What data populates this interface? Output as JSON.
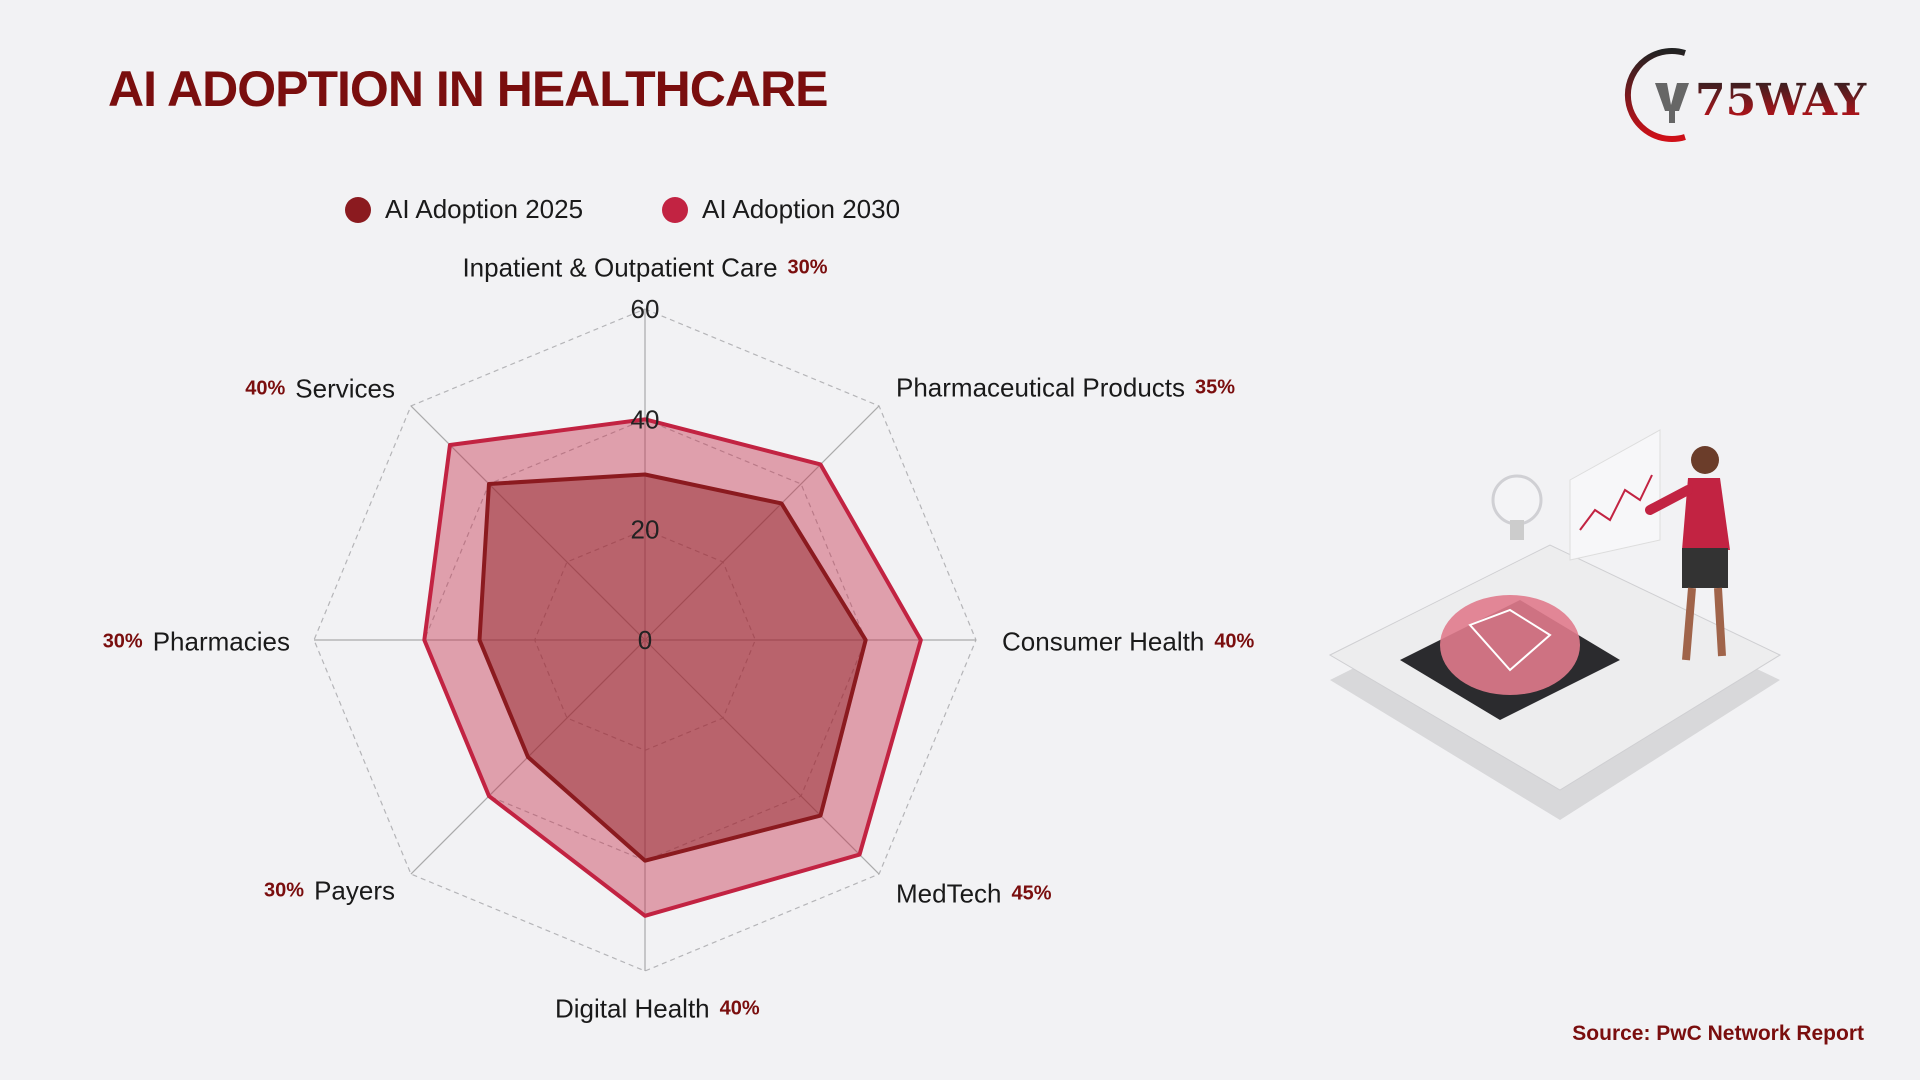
{
  "title": "AI ADOPTION IN HEALTHCARE",
  "logo": {
    "text": "75WAY"
  },
  "watermark": "75Way",
  "source": "Source: PwC Network Report",
  "chart_data": {
    "type": "radar",
    "title": "AI ADOPTION IN HEALTHCARE",
    "categories": [
      "Inpatient & Outpatient Care",
      "Pharmaceutical Products",
      "Consumer Health",
      "MedTech",
      "Digital Health",
      "Payers",
      "Pharmacies",
      "Services"
    ],
    "category_percent_labels": [
      "30%",
      "35%",
      "40%",
      "45%",
      "40%",
      "30%",
      "30%",
      "40%"
    ],
    "series": [
      {
        "name": "AI Adoption 2025",
        "color": "#8b1a1f",
        "values": [
          30,
          35,
          40,
          45,
          40,
          30,
          30,
          40
        ]
      },
      {
        "name": "AI Adoption 2030",
        "color": "#c22342",
        "values": [
          40,
          45,
          50,
          55,
          50,
          40,
          40,
          50
        ]
      }
    ],
    "rlim": [
      0,
      60
    ],
    "ticks": [
      "0",
      "20",
      "40",
      "60"
    ],
    "legend_position": "top",
    "grid": true
  }
}
